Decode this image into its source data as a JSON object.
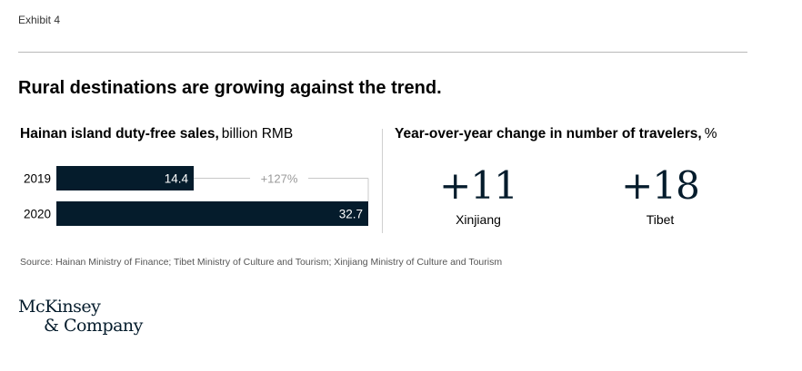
{
  "exhibit": "Exhibit 4",
  "headline": "Rural destinations are growing against the trend.",
  "left_panel": {
    "title": "Hainan island duty-free sales,",
    "unit": "billion RMB"
  },
  "right_panel": {
    "title": "Year-over-year change in number of travelers,",
    "unit": "%",
    "kpis": [
      {
        "value": "+11",
        "label": "Xinjiang"
      },
      {
        "value": "+18",
        "label": "Tibet"
      }
    ]
  },
  "chart_data": {
    "type": "bar",
    "orientation": "horizontal",
    "categories": [
      "2019",
      "2020"
    ],
    "values": [
      14.4,
      32.7
    ],
    "value_labels": [
      "14.4",
      "32.7"
    ],
    "annotation": "+127%",
    "bar_color": "#051c2c"
  },
  "source": "Source: Hainan Ministry of Finance; Tibet Ministry of Culture and Tourism; Xinjiang Ministry of Culture and Tourism",
  "logo": {
    "line1": "McKinsey",
    "line2": "& Company"
  }
}
